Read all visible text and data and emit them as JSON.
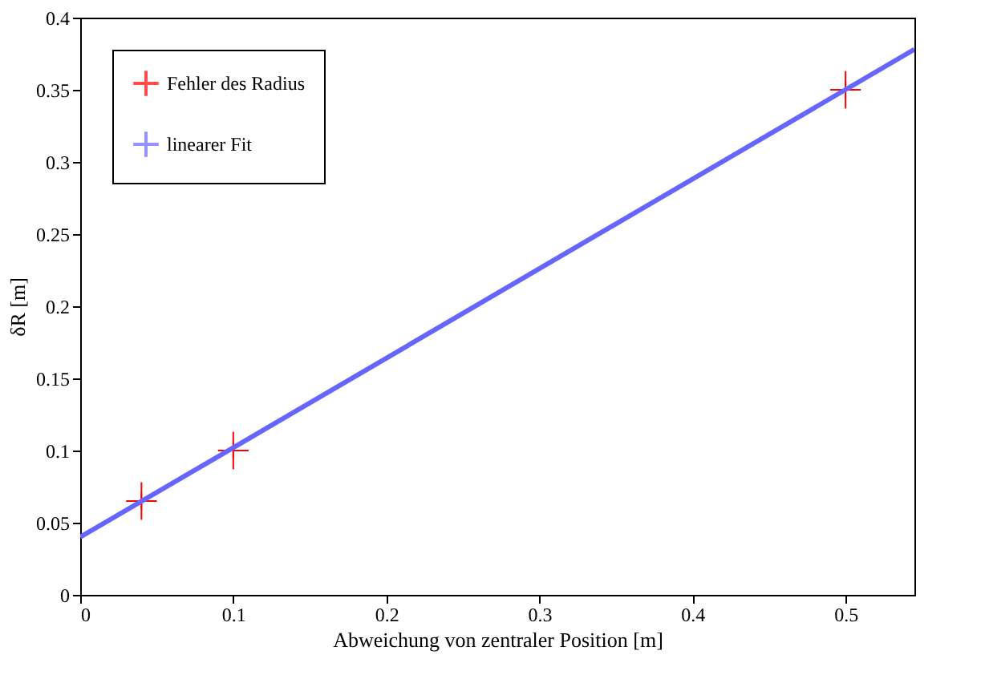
{
  "chart_data": {
    "type": "scatter",
    "xlabel": "Abweichung von zentraler Position [m]",
    "ylabel": "δR [m]",
    "xlim": [
      0,
      0.545
    ],
    "xticks": [
      0,
      0.1,
      0.2,
      0.3,
      0.4,
      0.5
    ],
    "ylim": [
      0,
      0.4
    ],
    "yticks": [
      0,
      0.05,
      0.1,
      0.15,
      0.2,
      0.25,
      0.3,
      0.35,
      0.4
    ],
    "grid": false,
    "legend": "top left",
    "series": [
      {
        "name": "Fehler des Radius",
        "color": "#ff0000",
        "marker": "cross",
        "x": [
          0.04,
          0.1,
          0.5
        ],
        "values": [
          0.065,
          0.1,
          0.35
        ],
        "errors": [
          0.013,
          0.013,
          0.013
        ],
        "xerrors": [
          0.01,
          0.01,
          0.01
        ]
      },
      {
        "name": "linearer Fit",
        "type": "line",
        "color": "#6666ff",
        "line_style": "solid",
        "marker": "none",
        "x": [
          0,
          0.545
        ],
        "values": [
          0.04,
          0.378
        ]
      }
    ]
  }
}
